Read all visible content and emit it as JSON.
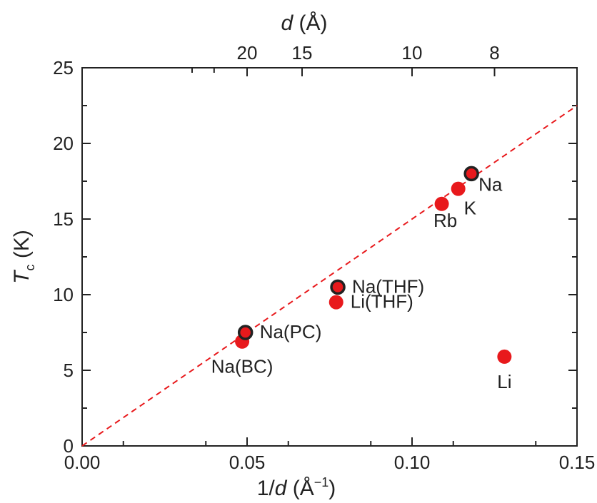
{
  "chart_data": {
    "type": "scatter",
    "x_axis": {
      "label_main": "1/",
      "label_var": "d",
      "label_unit_open": " (Å",
      "label_exp": "−1",
      "label_unit_close": ")",
      "range": [
        0,
        0.15
      ],
      "ticks": [
        0.0,
        0.05,
        0.1,
        0.15
      ],
      "tick_labels": [
        "0.00",
        "0.05",
        "0.10",
        "0.15"
      ]
    },
    "x2_axis": {
      "label_var": "d",
      "label_unit": " (Å)",
      "ticks_d": [
        20,
        15,
        10,
        8
      ],
      "tick_labels": [
        "20",
        "15",
        "10",
        "8"
      ]
    },
    "y_axis": {
      "label_var": "T",
      "label_sub": "c",
      "label_unit": " (K)",
      "range": [
        0,
        25
      ],
      "ticks": [
        0,
        5,
        10,
        15,
        20,
        25
      ],
      "tick_labels": [
        "0",
        "5",
        "10",
        "15",
        "20",
        "25"
      ]
    },
    "fit_line": {
      "x": [
        0,
        0.15
      ],
      "y": [
        0,
        22.5
      ],
      "color": "#e8191c",
      "style": "dashed"
    },
    "points": [
      {
        "label": "Na(BC)",
        "x": 0.0485,
        "y": 6.9,
        "outlined": false,
        "label_pos": "below"
      },
      {
        "label": "Na(PC)",
        "x": 0.0495,
        "y": 7.5,
        "outlined": true,
        "label_pos": "right"
      },
      {
        "label": "Li(THF)",
        "x": 0.077,
        "y": 9.5,
        "outlined": false,
        "label_pos": "right"
      },
      {
        "label": "Na(THF)",
        "x": 0.0775,
        "y": 10.5,
        "outlined": true,
        "label_pos": "right"
      },
      {
        "label": "Rb",
        "x": 0.109,
        "y": 16.0,
        "outlined": false,
        "label_pos": "below-left"
      },
      {
        "label": "K",
        "x": 0.114,
        "y": 17.0,
        "outlined": false,
        "label_pos": "below-right"
      },
      {
        "label": "Na",
        "x": 0.118,
        "y": 18.0,
        "outlined": true,
        "label_pos": "below-right"
      },
      {
        "label": "Li",
        "x": 0.128,
        "y": 5.9,
        "outlined": false,
        "label_pos": "below"
      }
    ],
    "colors": {
      "marker": "#e8191c",
      "outline": "#222222",
      "axis": "#222222"
    },
    "grid": false
  }
}
